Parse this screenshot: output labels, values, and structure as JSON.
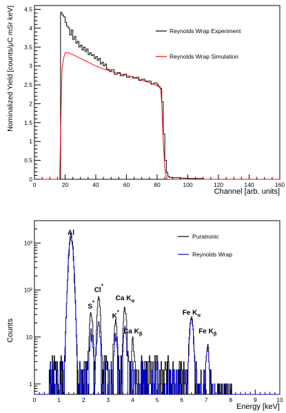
{
  "chart_data": [
    {
      "type": "line",
      "xlabel": "Channel [arb. units]",
      "ylabel": "Nominalized Yield [counts/μC mSr keV]",
      "xlim": [
        0,
        160
      ],
      "ylim": [
        0,
        4.6
      ],
      "x_ticks": [
        "0",
        "20",
        "40",
        "60",
        "80",
        "100",
        "120",
        "140",
        "160"
      ],
      "y_ticks": [
        "0",
        "0.5",
        "1",
        "1.5",
        "2",
        "2.5",
        "3",
        "3.5",
        "4",
        "4.5"
      ],
      "legend_position": "top-right",
      "grid": false,
      "series": [
        {
          "name": "Reynolds Wrap Experiment",
          "color": "#000000",
          "style": "histogram",
          "x": [
            0,
            17,
            18,
            19,
            20,
            21,
            22,
            23,
            24,
            25,
            26,
            27,
            28,
            29,
            30,
            31,
            32,
            33,
            34,
            35,
            36,
            37,
            38,
            39,
            40,
            41,
            42,
            43,
            44,
            45,
            46,
            47,
            48,
            49,
            50,
            52,
            54,
            56,
            58,
            60,
            62,
            64,
            66,
            68,
            70,
            72,
            74,
            76,
            78,
            80,
            81,
            82,
            83,
            84,
            85,
            86,
            87,
            88,
            90,
            95,
            100,
            105,
            110,
            115,
            120
          ],
          "values": [
            0,
            4.42,
            4.35,
            4.3,
            4.15,
            4.05,
            4.0,
            3.82,
            3.95,
            3.7,
            3.78,
            3.6,
            3.65,
            3.5,
            3.55,
            3.42,
            3.5,
            3.38,
            3.45,
            3.3,
            3.35,
            3.28,
            3.3,
            3.2,
            3.25,
            3.15,
            3.2,
            3.05,
            3.1,
            3.0,
            3.05,
            2.92,
            2.9,
            2.85,
            2.9,
            2.78,
            2.82,
            2.74,
            2.78,
            2.7,
            2.72,
            2.68,
            2.7,
            2.62,
            2.65,
            2.6,
            2.6,
            2.52,
            2.55,
            2.5,
            2.45,
            2.4,
            2.05,
            1.2,
            0.5,
            0.18,
            0.08,
            0.05,
            0.04,
            0.03,
            0.02,
            0.02,
            0.0,
            0.0,
            0.0
          ]
        },
        {
          "name": "Reynolds Wrap Simulation",
          "color": "#ff0000",
          "style": "line",
          "x": [
            0,
            16.5,
            17,
            18,
            19,
            20,
            22,
            25,
            30,
            35,
            40,
            45,
            50,
            55,
            60,
            65,
            70,
            75,
            80,
            81,
            82,
            82.5,
            83,
            84,
            85,
            86,
            87,
            160
          ],
          "values": [
            0,
            0,
            1.2,
            2.95,
            3.2,
            3.35,
            3.35,
            3.3,
            3.2,
            3.1,
            3.0,
            2.92,
            2.86,
            2.8,
            2.75,
            2.7,
            2.62,
            2.56,
            2.48,
            2.45,
            2.42,
            2.3,
            2.0,
            1.0,
            0.3,
            0.05,
            0.0,
            0.0
          ]
        }
      ]
    },
    {
      "type": "line",
      "xlabel": "Energy [keV]",
      "ylabel": "Counts",
      "xlim": [
        0,
        10
      ],
      "ylim": [
        0.6,
        3000
      ],
      "yscale": "log",
      "x_ticks": [
        "0",
        "1",
        "2",
        "3",
        "4",
        "5",
        "6",
        "7",
        "8",
        "9",
        "10"
      ],
      "y_ticks": [
        "1",
        "10",
        "10²",
        "10³"
      ],
      "legend_position": "top-right",
      "grid": false,
      "peak_labels": [
        {
          "text": "Al",
          "sub": "",
          "mark": "",
          "x": 1.49,
          "y": 1500
        },
        {
          "text": "S",
          "sub": "",
          "mark": "*",
          "x": 2.31,
          "y": 40
        },
        {
          "text": "Cl",
          "sub": "",
          "mark": "*",
          "x": 2.62,
          "y": 90
        },
        {
          "text": "K",
          "sub": "",
          "mark": "*",
          "x": 3.31,
          "y": 25
        },
        {
          "text": "Ca K",
          "sub": "α",
          "mark": "",
          "x": 3.69,
          "y": 60
        },
        {
          "text": "Ca K",
          "sub": "β",
          "mark": "",
          "x": 4.01,
          "y": 12
        },
        {
          "text": "Fe K",
          "sub": "α",
          "mark": "",
          "x": 6.4,
          "y": 30
        },
        {
          "text": "Fe K",
          "sub": "β",
          "mark": "",
          "x": 7.06,
          "y": 12
        }
      ],
      "series": [
        {
          "name": "Puratronic",
          "color": "#000000",
          "style": "histogram",
          "peaks": [
            {
              "center": 1.49,
              "height": 1300,
              "width": 0.07
            },
            {
              "center": 2.31,
              "height": 35,
              "width": 0.05
            },
            {
              "center": 2.62,
              "height": 70,
              "width": 0.05
            },
            {
              "center": 3.31,
              "height": 20,
              "width": 0.05
            },
            {
              "center": 3.69,
              "height": 40,
              "width": 0.05
            },
            {
              "center": 4.01,
              "height": 7,
              "width": 0.05
            },
            {
              "center": 6.4,
              "height": 25,
              "width": 0.06
            },
            {
              "center": 7.06,
              "height": 5,
              "width": 0.05
            }
          ],
          "background": 2.5
        },
        {
          "name": "Reynolds Wrap",
          "color": "#0000cc",
          "style": "histogram",
          "peaks": [
            {
              "center": 1.49,
              "height": 1450,
              "width": 0.07
            },
            {
              "center": 2.31,
              "height": 12,
              "width": 0.05
            },
            {
              "center": 2.62,
              "height": 20,
              "width": 0.05
            },
            {
              "center": 3.31,
              "height": 10,
              "width": 0.05
            },
            {
              "center": 3.69,
              "height": 15,
              "width": 0.05
            },
            {
              "center": 6.4,
              "height": 25,
              "width": 0.06
            },
            {
              "center": 7.06,
              "height": 5,
              "width": 0.05
            }
          ],
          "background": 2.0
        }
      ]
    }
  ]
}
